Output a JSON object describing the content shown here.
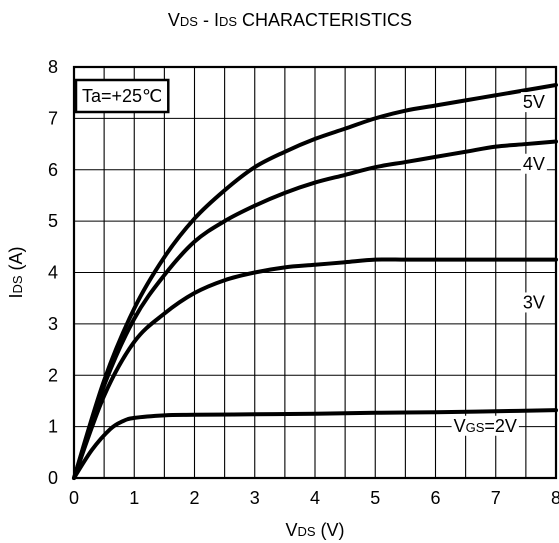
{
  "chart_data": {
    "type": "line",
    "title_parts": [
      {
        "text": "V",
        "size": "big"
      },
      {
        "text": "DS",
        "size": "small"
      },
      {
        "text": " - I",
        "size": "big"
      },
      {
        "text": "DS",
        "size": "small"
      },
      {
        "text": " CHARACTERISTICS",
        "size": "big"
      }
    ],
    "xlabel_parts": [
      {
        "text": "V",
        "size": "big"
      },
      {
        "text": "DS",
        "size": "small"
      },
      {
        "text": " (V)",
        "size": "big"
      }
    ],
    "ylabel_parts": [
      {
        "text": "I",
        "size": "big"
      },
      {
        "text": "DS",
        "size": "small"
      },
      {
        "text": " (A)",
        "size": "big"
      }
    ],
    "xlim": [
      0,
      8
    ],
    "ylim": [
      0,
      8
    ],
    "x_ticks": [
      0,
      1,
      2,
      3,
      4,
      5,
      6,
      7,
      8
    ],
    "y_ticks": [
      0,
      1,
      2,
      3,
      4,
      5,
      6,
      7,
      8
    ],
    "x_minor_step": 0.5,
    "grid": true,
    "annotation": "Ta=+25℃",
    "series": [
      {
        "key": "5v",
        "label_parts": [
          {
            "text": "5V",
            "size": "big"
          }
        ],
        "label_at": [
          7.45,
          7.2
        ],
        "x": [
          0,
          0.5,
          1,
          1.5,
          2,
          2.5,
          3,
          3.5,
          4,
          4.5,
          5,
          5.5,
          6,
          6.5,
          7,
          7.5,
          8
        ],
        "y": [
          0,
          1.9,
          3.3,
          4.3,
          5.05,
          5.6,
          6.05,
          6.35,
          6.6,
          6.8,
          7.0,
          7.15,
          7.25,
          7.35,
          7.45,
          7.55,
          7.65
        ]
      },
      {
        "key": "4v",
        "label_parts": [
          {
            "text": "4V",
            "size": "big"
          }
        ],
        "label_at": [
          7.45,
          6.0
        ],
        "x": [
          0,
          0.5,
          1,
          1.5,
          2,
          2.5,
          3,
          3.5,
          4,
          4.5,
          5,
          5.5,
          6,
          6.5,
          7,
          7.5,
          8
        ],
        "y": [
          0,
          1.8,
          3.1,
          3.95,
          4.6,
          5.0,
          5.3,
          5.55,
          5.75,
          5.9,
          6.05,
          6.15,
          6.25,
          6.35,
          6.45,
          6.5,
          6.55
        ]
      },
      {
        "key": "3v",
        "label_parts": [
          {
            "text": "3V",
            "size": "big"
          }
        ],
        "label_at": [
          7.45,
          3.3
        ],
        "x": [
          0,
          0.5,
          1,
          1.5,
          2,
          2.5,
          3,
          3.5,
          4,
          4.5,
          5,
          5.5,
          6,
          6.5,
          7,
          7.5,
          8
        ],
        "y": [
          0,
          1.6,
          2.65,
          3.2,
          3.6,
          3.85,
          4.0,
          4.1,
          4.15,
          4.2,
          4.25,
          4.25,
          4.25,
          4.25,
          4.25,
          4.25,
          4.25
        ]
      },
      {
        "key": "2v",
        "label_parts": [
          {
            "text": "V",
            "size": "big"
          },
          {
            "text": "GS",
            "size": "small"
          },
          {
            "text": "=2V",
            "size": "big"
          }
        ],
        "label_at": [
          6.3,
          0.9
        ],
        "x": [
          0,
          0.3,
          0.6,
          0.8,
          1,
          1.5,
          2,
          3,
          4,
          5,
          6,
          7,
          8
        ],
        "y": [
          0,
          0.55,
          0.95,
          1.1,
          1.17,
          1.22,
          1.23,
          1.24,
          1.25,
          1.27,
          1.28,
          1.3,
          1.32
        ]
      }
    ]
  }
}
